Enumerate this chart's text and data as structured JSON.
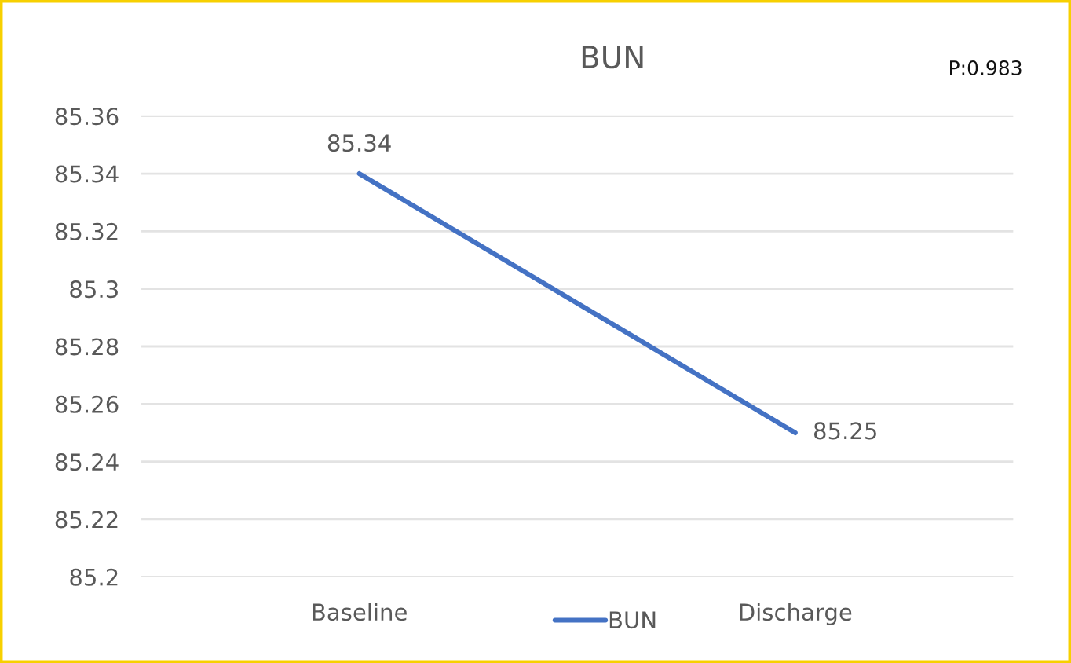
{
  "chart_data": {
    "type": "line",
    "title": "BUN",
    "categories": [
      "Baseline",
      "Discharge"
    ],
    "series": [
      {
        "name": "BUN",
        "color": "#4472c4",
        "values": [
          85.34,
          85.25
        ]
      }
    ],
    "ylim": [
      85.2,
      85.36
    ],
    "yticks": [
      85.2,
      85.22,
      85.24,
      85.26,
      85.28,
      85.3,
      85.32,
      85.34,
      85.36
    ],
    "grid": "y",
    "legend": "bottom",
    "data_labels": true,
    "marker": "none",
    "line_style": "solid",
    "annotations": [
      "P:0.983"
    ]
  }
}
